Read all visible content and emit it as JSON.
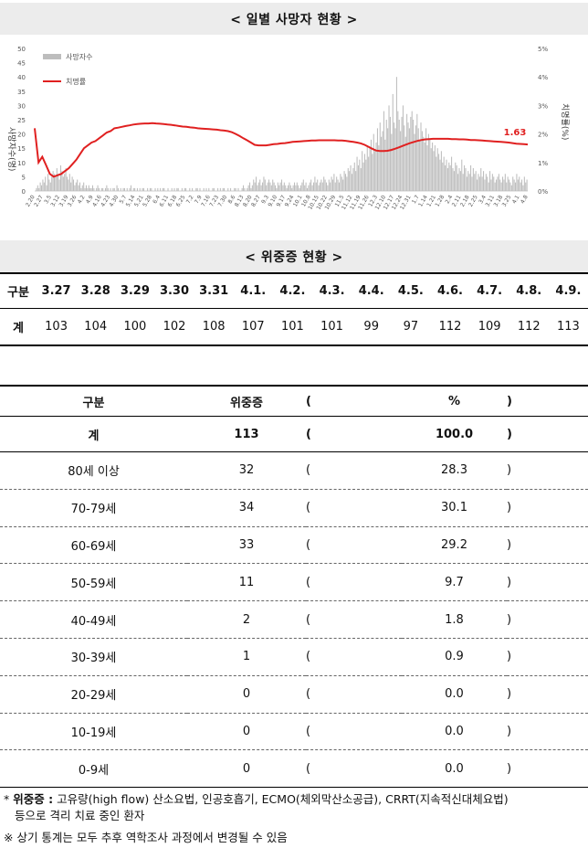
{
  "title1": "< 일별 사망자 현황 >",
  "title2": "< 위중증 현황 >",
  "chart_data": {
    "type": "bar",
    "y_left": {
      "label": "사망자수(명)",
      "ticks": [
        0,
        5,
        10,
        15,
        20,
        25,
        30,
        35,
        40,
        45,
        50
      ],
      "range": [
        0,
        50
      ]
    },
    "y_right": {
      "label": "치명률(%)",
      "ticks": [
        "0%",
        "1%",
        "2%",
        "3%",
        "4%",
        "5%"
      ],
      "range": [
        0,
        5
      ]
    },
    "legend": [
      {
        "name": "사망자수",
        "color": "#bdbdbd"
      },
      {
        "name": "치명률",
        "color": "#e02020"
      }
    ],
    "x_labels": [
      "2.20",
      "2.27",
      "3.5",
      "3.12",
      "3.19",
      "3.26",
      "4.2",
      "4.9",
      "4.16",
      "4.23",
      "4.30",
      "5.7",
      "5.14",
      "5.21",
      "5.28",
      "6.4",
      "6.11",
      "6.18",
      "6.25",
      "7.2",
      "7.9",
      "7.16",
      "7.23",
      "7.30",
      "8.6",
      "8.13",
      "8.20",
      "8.27",
      "9.3",
      "9.10",
      "9.17",
      "9.24",
      "10.1",
      "10.8",
      "10.15",
      "10.22",
      "10.29",
      "11.5",
      "11.12",
      "11.19",
      "11.26",
      "12.3",
      "12.10",
      "12.17",
      "12.24",
      "12.31",
      "1.7",
      "1.14",
      "1.21",
      "1.28",
      "2.4",
      "2.11",
      "2.18",
      "2.25",
      "3.4",
      "3.11",
      "3.18",
      "3.25",
      "4.1",
      "4.8"
    ],
    "bar_color": "#bdbdbd",
    "line_color": "#e02020",
    "last_value_label": "1.63",
    "deaths": [
      0,
      1,
      2,
      1,
      3,
      2,
      4,
      3,
      5,
      2,
      6,
      4,
      3,
      5,
      7,
      6,
      5,
      8,
      6,
      4,
      9,
      7,
      5,
      6,
      8,
      5,
      4,
      6,
      3,
      5,
      4,
      2,
      3,
      4,
      2,
      3,
      1,
      2,
      3,
      1,
      2,
      1,
      2,
      1,
      1,
      2,
      1,
      0,
      1,
      2,
      1,
      0,
      1,
      1,
      0,
      1,
      2,
      1,
      0,
      1,
      0,
      1,
      1,
      0,
      2,
      1,
      0,
      1,
      0,
      1,
      1,
      0,
      1,
      0,
      1,
      2,
      0,
      1,
      1,
      0,
      1,
      0,
      1,
      0,
      1,
      1,
      0,
      0,
      1,
      0,
      1,
      1,
      0,
      0,
      1,
      0,
      1,
      0,
      1,
      0,
      1,
      1,
      0,
      0,
      1,
      0,
      0,
      1,
      0,
      1,
      0,
      1,
      1,
      0,
      0,
      1,
      0,
      1,
      1,
      0,
      0,
      1,
      0,
      1,
      0,
      0,
      1,
      1,
      0,
      1,
      0,
      0,
      1,
      0,
      1,
      0,
      1,
      0,
      0,
      1,
      1,
      0,
      0,
      1,
      0,
      1,
      0,
      1,
      1,
      0,
      0,
      1,
      0,
      1,
      0,
      0,
      1,
      1,
      0,
      1,
      0,
      0,
      1,
      2,
      1,
      0,
      1,
      2,
      3,
      1,
      2,
      4,
      3,
      5,
      2,
      3,
      4,
      2,
      3,
      5,
      4,
      2,
      3,
      4,
      3,
      2,
      4,
      3,
      2,
      1,
      3,
      2,
      3,
      4,
      2,
      3,
      2,
      1,
      2,
      3,
      2,
      1,
      2,
      3,
      2,
      3,
      2,
      1,
      2,
      3,
      4,
      2,
      3,
      1,
      2,
      3,
      4,
      2,
      3,
      5,
      3,
      4,
      2,
      3,
      4,
      3,
      5,
      4,
      3,
      2,
      4,
      3,
      5,
      4,
      6,
      3,
      5,
      4,
      3,
      6,
      5,
      4,
      7,
      6,
      5,
      8,
      7,
      9,
      6,
      8,
      10,
      7,
      12,
      9,
      11,
      8,
      14,
      10,
      13,
      11,
      16,
      12,
      15,
      18,
      13,
      20,
      14,
      17,
      22,
      16,
      24,
      19,
      21,
      28,
      18,
      25,
      22,
      30,
      26,
      20,
      34,
      24,
      22,
      40,
      28,
      25,
      21,
      26,
      30,
      23,
      19,
      27,
      24,
      22,
      26,
      28,
      25,
      20,
      23,
      27,
      22,
      18,
      24,
      21,
      19,
      17,
      22,
      16,
      20,
      18,
      15,
      17,
      14,
      16,
      12,
      15,
      13,
      11,
      14,
      10,
      12,
      9,
      11,
      8,
      10,
      9,
      12,
      8,
      7,
      10,
      9,
      6,
      8,
      7,
      11,
      6,
      9,
      8,
      5,
      7,
      6,
      9,
      5,
      8,
      6,
      7,
      4,
      6,
      5,
      8,
      5,
      7,
      4,
      6,
      5,
      3,
      7,
      4,
      6,
      5,
      3,
      4,
      5,
      6,
      4,
      3,
      5,
      4,
      6,
      3,
      5,
      4,
      3,
      2,
      5,
      4,
      3,
      6,
      4,
      5,
      3,
      4,
      2,
      5,
      3,
      4
    ],
    "fatality_rate": [
      2.2,
      1.0,
      1.2,
      0.9,
      0.6,
      0.5,
      0.55,
      0.6,
      0.7,
      0.8,
      0.95,
      1.1,
      1.3,
      1.5,
      1.6,
      1.7,
      1.75,
      1.85,
      1.95,
      2.05,
      2.1,
      2.2,
      2.22,
      2.25,
      2.28,
      2.3,
      2.33,
      2.35,
      2.36,
      2.37,
      2.37,
      2.38,
      2.37,
      2.36,
      2.35,
      2.33,
      2.32,
      2.3,
      2.28,
      2.26,
      2.25,
      2.23,
      2.22,
      2.2,
      2.19,
      2.18,
      2.17,
      2.16,
      2.15,
      2.13,
      2.12,
      2.1,
      2.06,
      2.0,
      1.93,
      1.85,
      1.78,
      1.7,
      1.62,
      1.6,
      1.6,
      1.6,
      1.62,
      1.64,
      1.65,
      1.67,
      1.68,
      1.7,
      1.72,
      1.73,
      1.74,
      1.75,
      1.76,
      1.77,
      1.77,
      1.78,
      1.78,
      1.78,
      1.78,
      1.78,
      1.77,
      1.77,
      1.76,
      1.74,
      1.72,
      1.7,
      1.67,
      1.62,
      1.55,
      1.48,
      1.42,
      1.4,
      1.4,
      1.41,
      1.44,
      1.48,
      1.53,
      1.58,
      1.63,
      1.68,
      1.72,
      1.76,
      1.79,
      1.81,
      1.82,
      1.83,
      1.83,
      1.83,
      1.83,
      1.83,
      1.82,
      1.82,
      1.81,
      1.81,
      1.8,
      1.79,
      1.79,
      1.78,
      1.77,
      1.76,
      1.75,
      1.74,
      1.73,
      1.72,
      1.71,
      1.7,
      1.68,
      1.66,
      1.65,
      1.64,
      1.63
    ]
  },
  "severe_daily": {
    "header_label": "구분",
    "dates": [
      "3.27",
      "3.28",
      "3.29",
      "3.30",
      "3.31",
      "4.1.",
      "4.2.",
      "4.3.",
      "4.4.",
      "4.5.",
      "4.6.",
      "4.7.",
      "4.8.",
      "4.9."
    ],
    "row_label": "계",
    "values": [
      "103",
      "104",
      "100",
      "102",
      "108",
      "107",
      "101",
      "101",
      "99",
      "97",
      "112",
      "109",
      "112",
      "113"
    ]
  },
  "severe_age": {
    "headers": {
      "group": "구분",
      "count": "위중증",
      "open": "(",
      "pct": "%",
      "close": ")"
    },
    "rows": [
      {
        "group": "계",
        "count": "113",
        "pct": "100.0"
      },
      {
        "group": "80세 이상",
        "count": "32",
        "pct": "28.3"
      },
      {
        "group": "70-79세",
        "count": "34",
        "pct": "30.1"
      },
      {
        "group": "60-69세",
        "count": "33",
        "pct": "29.2"
      },
      {
        "group": "50-59세",
        "count": "11",
        "pct": "9.7"
      },
      {
        "group": "40-49세",
        "count": "2",
        "pct": "1.8"
      },
      {
        "group": "30-39세",
        "count": "1",
        "pct": "0.9"
      },
      {
        "group": "20-29세",
        "count": "0",
        "pct": "0.0"
      },
      {
        "group": "10-19세",
        "count": "0",
        "pct": "0.0"
      },
      {
        "group": "0-9세",
        "count": "0",
        "pct": "0.0"
      }
    ]
  },
  "footnote": {
    "star": "*",
    "term": "위중증 :",
    "line1": " 고유량(high flow) 산소요법, 인공호흡기, ECMO(체외막산소공급), CRRT(지속적신대체요법)",
    "line2": "등으로 격리 치료 중인 환자",
    "line3": "※ 상기 통계는 모두 추후 역학조사 과정에서 변경될 수 있음"
  }
}
